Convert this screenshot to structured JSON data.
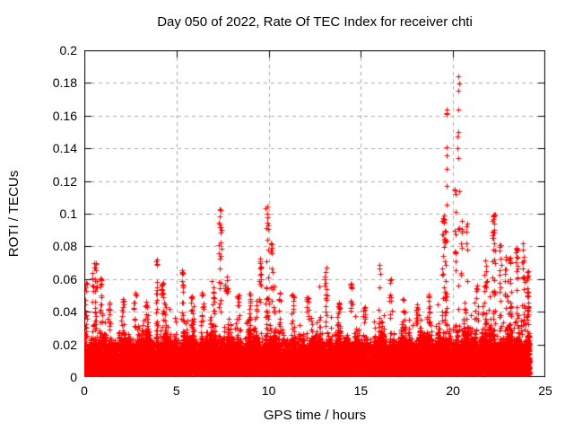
{
  "chart_data": {
    "type": "scatter",
    "title": "Day 050 of 2022, Rate Of TEC Index for receiver chti",
    "xlabel": "GPS time / hours",
    "ylabel": "ROTI / TECUs",
    "xlim": [
      0,
      25
    ],
    "ylim": [
      0,
      0.2
    ],
    "xticks": [
      "0",
      "5",
      "10",
      "15",
      "20",
      "25"
    ],
    "yticks": [
      "0",
      "0.02",
      "0.04",
      "0.06",
      "0.08",
      "0.1",
      "0.12",
      "0.14",
      "0.16",
      "0.18",
      "0.2"
    ],
    "grid": "dashed-major",
    "legend": "none",
    "marker": "plus",
    "marker_color": "#ff0000",
    "grid_color": "#a8a8a8",
    "axis_color": "#000000",
    "background": "#ffffff",
    "x_data_range": [
      0,
      24.15
    ],
    "max_point": {
      "x": 20.3,
      "y": 0.185
    },
    "baseline_band": {
      "description": "Dense band of ROTI values: solid red from ~0.002 to ~0.025 TECU all day, ragged minute-scale columns reaching the listed envelope top.",
      "t": [
        0,
        0.5,
        1,
        2,
        3,
        4,
        5,
        6,
        7,
        8,
        9,
        10,
        11,
        12,
        13,
        14,
        15,
        16,
        17,
        18,
        19,
        19.5,
        20,
        21,
        22,
        23,
        24,
        24.15
      ],
      "top": [
        0.034,
        0.044,
        0.032,
        0.03,
        0.034,
        0.04,
        0.035,
        0.037,
        0.041,
        0.035,
        0.04,
        0.045,
        0.033,
        0.034,
        0.039,
        0.033,
        0.031,
        0.034,
        0.033,
        0.035,
        0.04,
        0.046,
        0.043,
        0.041,
        0.047,
        0.041,
        0.049,
        0.044
      ]
    },
    "spikes": [
      {
        "x": 0.08,
        "peak": 0.058,
        "n": 10,
        "w": 0.1
      },
      {
        "x": 0.55,
        "peak": 0.07,
        "n": 26,
        "w": 0.25
      },
      {
        "x": 0.9,
        "peak": 0.061,
        "n": 14,
        "w": 0.15
      },
      {
        "x": 1.35,
        "peak": 0.046,
        "n": 10,
        "w": 0.15
      },
      {
        "x": 2.1,
        "peak": 0.048,
        "n": 10,
        "w": 0.15
      },
      {
        "x": 2.75,
        "peak": 0.052,
        "n": 10,
        "w": 0.12
      },
      {
        "x": 3.35,
        "peak": 0.046,
        "n": 12,
        "w": 0.2
      },
      {
        "x": 3.95,
        "peak": 0.072,
        "n": 12,
        "w": 0.12
      },
      {
        "x": 4.25,
        "peak": 0.058,
        "n": 14,
        "w": 0.2
      },
      {
        "x": 5.3,
        "peak": 0.066,
        "n": 12,
        "w": 0.15
      },
      {
        "x": 5.85,
        "peak": 0.05,
        "n": 10,
        "w": 0.15
      },
      {
        "x": 6.4,
        "peak": 0.052,
        "n": 10,
        "w": 0.15
      },
      {
        "x": 7.0,
        "peak": 0.055,
        "n": 12,
        "w": 0.15
      },
      {
        "x": 7.35,
        "peak": 0.104,
        "n": 22,
        "w": 0.15
      },
      {
        "x": 7.7,
        "peak": 0.062,
        "n": 10,
        "w": 0.15
      },
      {
        "x": 8.35,
        "peak": 0.05,
        "n": 10,
        "w": 0.15
      },
      {
        "x": 9.0,
        "peak": 0.052,
        "n": 12,
        "w": 0.15
      },
      {
        "x": 9.55,
        "peak": 0.073,
        "n": 12,
        "w": 0.12
      },
      {
        "x": 9.9,
        "peak": 0.105,
        "n": 24,
        "w": 0.15
      },
      {
        "x": 10.15,
        "peak": 0.082,
        "n": 12,
        "w": 0.12
      },
      {
        "x": 10.6,
        "peak": 0.052,
        "n": 10,
        "w": 0.15
      },
      {
        "x": 11.3,
        "peak": 0.051,
        "n": 10,
        "w": 0.15
      },
      {
        "x": 12.1,
        "peak": 0.049,
        "n": 10,
        "w": 0.15
      },
      {
        "x": 13.1,
        "peak": 0.068,
        "n": 14,
        "w": 0.18
      },
      {
        "x": 13.8,
        "peak": 0.046,
        "n": 10,
        "w": 0.15
      },
      {
        "x": 14.5,
        "peak": 0.057,
        "n": 10,
        "w": 0.12
      },
      {
        "x": 15.2,
        "peak": 0.043,
        "n": 8,
        "w": 0.15
      },
      {
        "x": 16.0,
        "peak": 0.069,
        "n": 5,
        "w": 0.08
      },
      {
        "x": 16.6,
        "peak": 0.06,
        "n": 12,
        "w": 0.15
      },
      {
        "x": 17.3,
        "peak": 0.048,
        "n": 10,
        "w": 0.15
      },
      {
        "x": 18.05,
        "peak": 0.045,
        "n": 10,
        "w": 0.15
      },
      {
        "x": 18.7,
        "peak": 0.051,
        "n": 10,
        "w": 0.15
      },
      {
        "x": 19.5,
        "peak": 0.1,
        "n": 30,
        "w": 0.2
      },
      {
        "x": 19.65,
        "peak": 0.165,
        "n": 9,
        "w": 0.07
      },
      {
        "x": 20.1,
        "peak": 0.115,
        "n": 10,
        "w": 0.1
      },
      {
        "x": 20.3,
        "peak": 0.185,
        "n": 13,
        "w": 0.1
      },
      {
        "x": 20.45,
        "peak": 0.096,
        "n": 8,
        "w": 0.1
      },
      {
        "x": 20.75,
        "peak": 0.095,
        "n": 4,
        "w": 0.06
      },
      {
        "x": 21.3,
        "peak": 0.056,
        "n": 10,
        "w": 0.15
      },
      {
        "x": 21.75,
        "peak": 0.072,
        "n": 12,
        "w": 0.15
      },
      {
        "x": 22.2,
        "peak": 0.101,
        "n": 28,
        "w": 0.18
      },
      {
        "x": 22.55,
        "peak": 0.082,
        "n": 14,
        "w": 0.12
      },
      {
        "x": 22.85,
        "peak": 0.074,
        "n": 12,
        "w": 0.12
      },
      {
        "x": 23.1,
        "peak": 0.073,
        "n": 8,
        "w": 0.1
      },
      {
        "x": 23.45,
        "peak": 0.08,
        "n": 18,
        "w": 0.12
      },
      {
        "x": 23.8,
        "peak": 0.083,
        "n": 16,
        "w": 0.12
      },
      {
        "x": 24.05,
        "peak": 0.065,
        "n": 14,
        "w": 0.1
      }
    ],
    "generation": {
      "seed": 1337,
      "base_points": 15000,
      "band_points": 9000
    }
  }
}
